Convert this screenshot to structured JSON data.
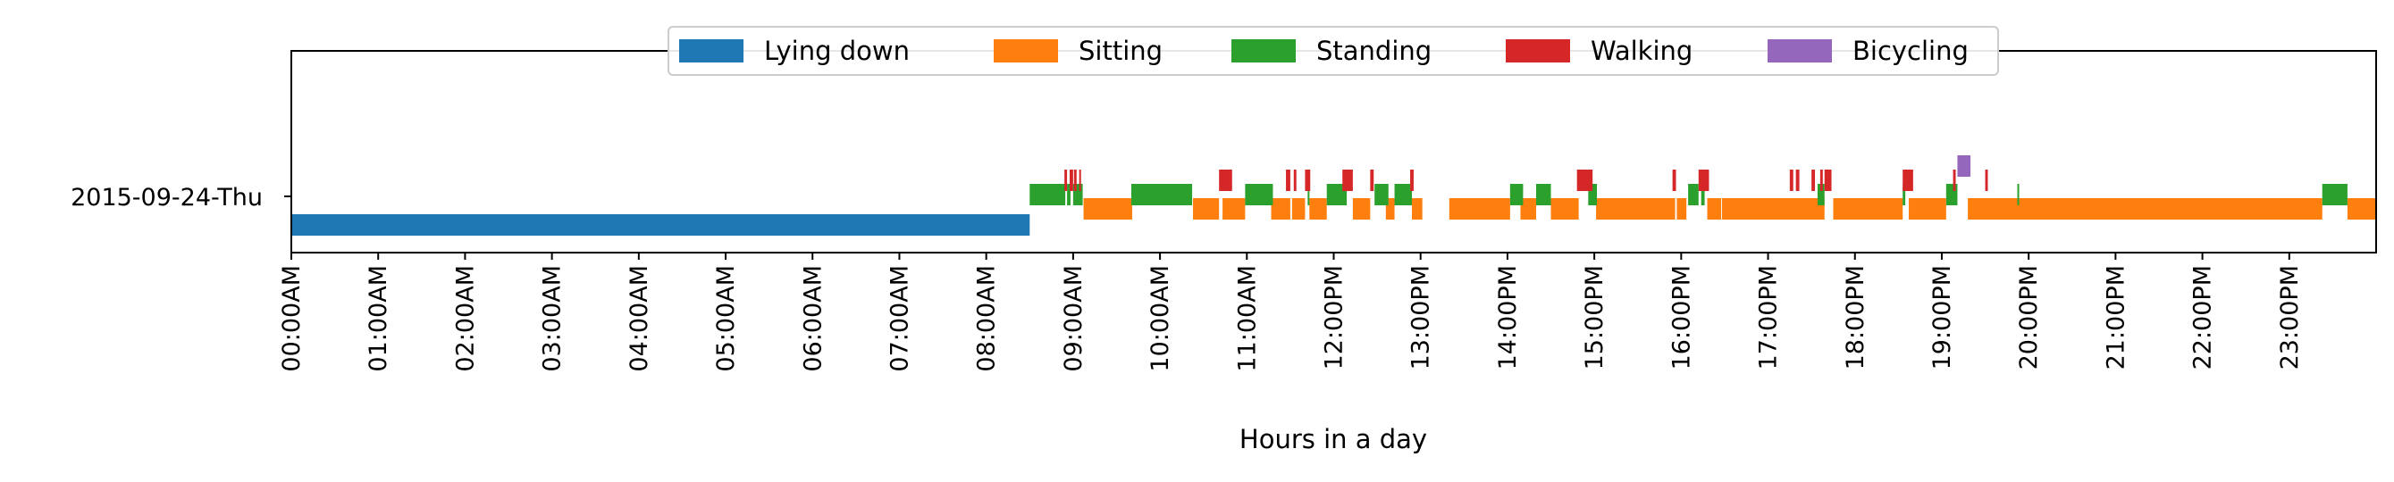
{
  "chart_data": {
    "type": "bar",
    "title": "",
    "xlabel": "Hours in a day",
    "ylabel": "",
    "category": "2015-09-24-Thu",
    "xlim": [
      0,
      24
    ],
    "grid": false,
    "legend_position": "top-center",
    "tick_labels": [
      "00:00AM",
      "01:00AM",
      "02:00AM",
      "03:00AM",
      "04:00AM",
      "05:00AM",
      "06:00AM",
      "07:00AM",
      "08:00AM",
      "09:00AM",
      "10:00AM",
      "11:00AM",
      "12:00PM",
      "13:00PM",
      "14:00PM",
      "15:00PM",
      "16:00PM",
      "17:00PM",
      "18:00PM",
      "19:00PM",
      "20:00PM",
      "21:00PM",
      "22:00PM",
      "23:00PM"
    ],
    "series": [
      {
        "name": "Lying down",
        "color": "#1f77b4",
        "segments": [
          [
            0.0,
            8.5
          ]
        ]
      },
      {
        "name": "Sitting",
        "color": "#ff7f0e",
        "segments": [
          [
            9.12,
            9.68
          ],
          [
            10.38,
            10.68
          ],
          [
            10.72,
            10.98
          ],
          [
            11.28,
            11.5
          ],
          [
            11.52,
            11.67
          ],
          [
            11.72,
            11.92
          ],
          [
            12.22,
            12.42
          ],
          [
            12.6,
            12.7
          ],
          [
            12.9,
            13.02
          ],
          [
            13.33,
            14.03
          ],
          [
            14.15,
            14.33
          ],
          [
            14.5,
            14.82
          ],
          [
            15.02,
            15.93
          ],
          [
            15.95,
            16.06
          ],
          [
            16.3,
            16.46
          ],
          [
            16.47,
            17.65
          ],
          [
            17.75,
            18.55
          ],
          [
            18.62,
            19.05
          ],
          [
            19.3,
            23.38
          ],
          [
            23.67,
            24.0
          ]
        ]
      },
      {
        "name": "Standing",
        "color": "#2ca02c",
        "segments": [
          [
            8.5,
            8.91
          ],
          [
            8.93,
            8.97
          ],
          [
            9.0,
            9.11
          ],
          [
            9.67,
            10.37
          ],
          [
            10.98,
            11.3
          ],
          [
            11.7,
            11.72
          ],
          [
            11.92,
            12.15
          ],
          [
            12.47,
            12.63
          ],
          [
            12.7,
            12.9
          ],
          [
            14.03,
            14.18
          ],
          [
            14.33,
            14.5
          ],
          [
            14.93,
            15.03
          ],
          [
            16.08,
            16.2
          ],
          [
            16.23,
            16.27
          ],
          [
            17.57,
            17.65
          ],
          [
            18.55,
            18.58
          ],
          [
            19.05,
            19.18
          ],
          [
            19.87,
            19.89
          ],
          [
            23.38,
            23.67
          ]
        ]
      },
      {
        "name": "Walking",
        "color": "#d62728",
        "segments": [
          [
            8.9,
            8.93
          ],
          [
            8.96,
            9.0
          ],
          [
            9.01,
            9.04
          ],
          [
            9.07,
            9.09
          ],
          [
            10.68,
            10.83
          ],
          [
            11.45,
            11.5
          ],
          [
            11.54,
            11.57
          ],
          [
            11.67,
            11.73
          ],
          [
            12.1,
            12.22
          ],
          [
            12.42,
            12.46
          ],
          [
            12.88,
            12.92
          ],
          [
            14.8,
            14.98
          ],
          [
            15.9,
            15.94
          ],
          [
            16.2,
            16.32
          ],
          [
            17.25,
            17.29
          ],
          [
            17.32,
            17.36
          ],
          [
            17.5,
            17.54
          ],
          [
            17.6,
            17.63
          ],
          [
            17.65,
            17.73
          ],
          [
            18.55,
            18.67
          ],
          [
            19.13,
            19.16
          ],
          [
            19.5,
            19.53
          ]
        ]
      },
      {
        "name": "Bicycling",
        "color": "#9467bd",
        "segments": [
          [
            19.18,
            19.33
          ]
        ]
      }
    ]
  }
}
